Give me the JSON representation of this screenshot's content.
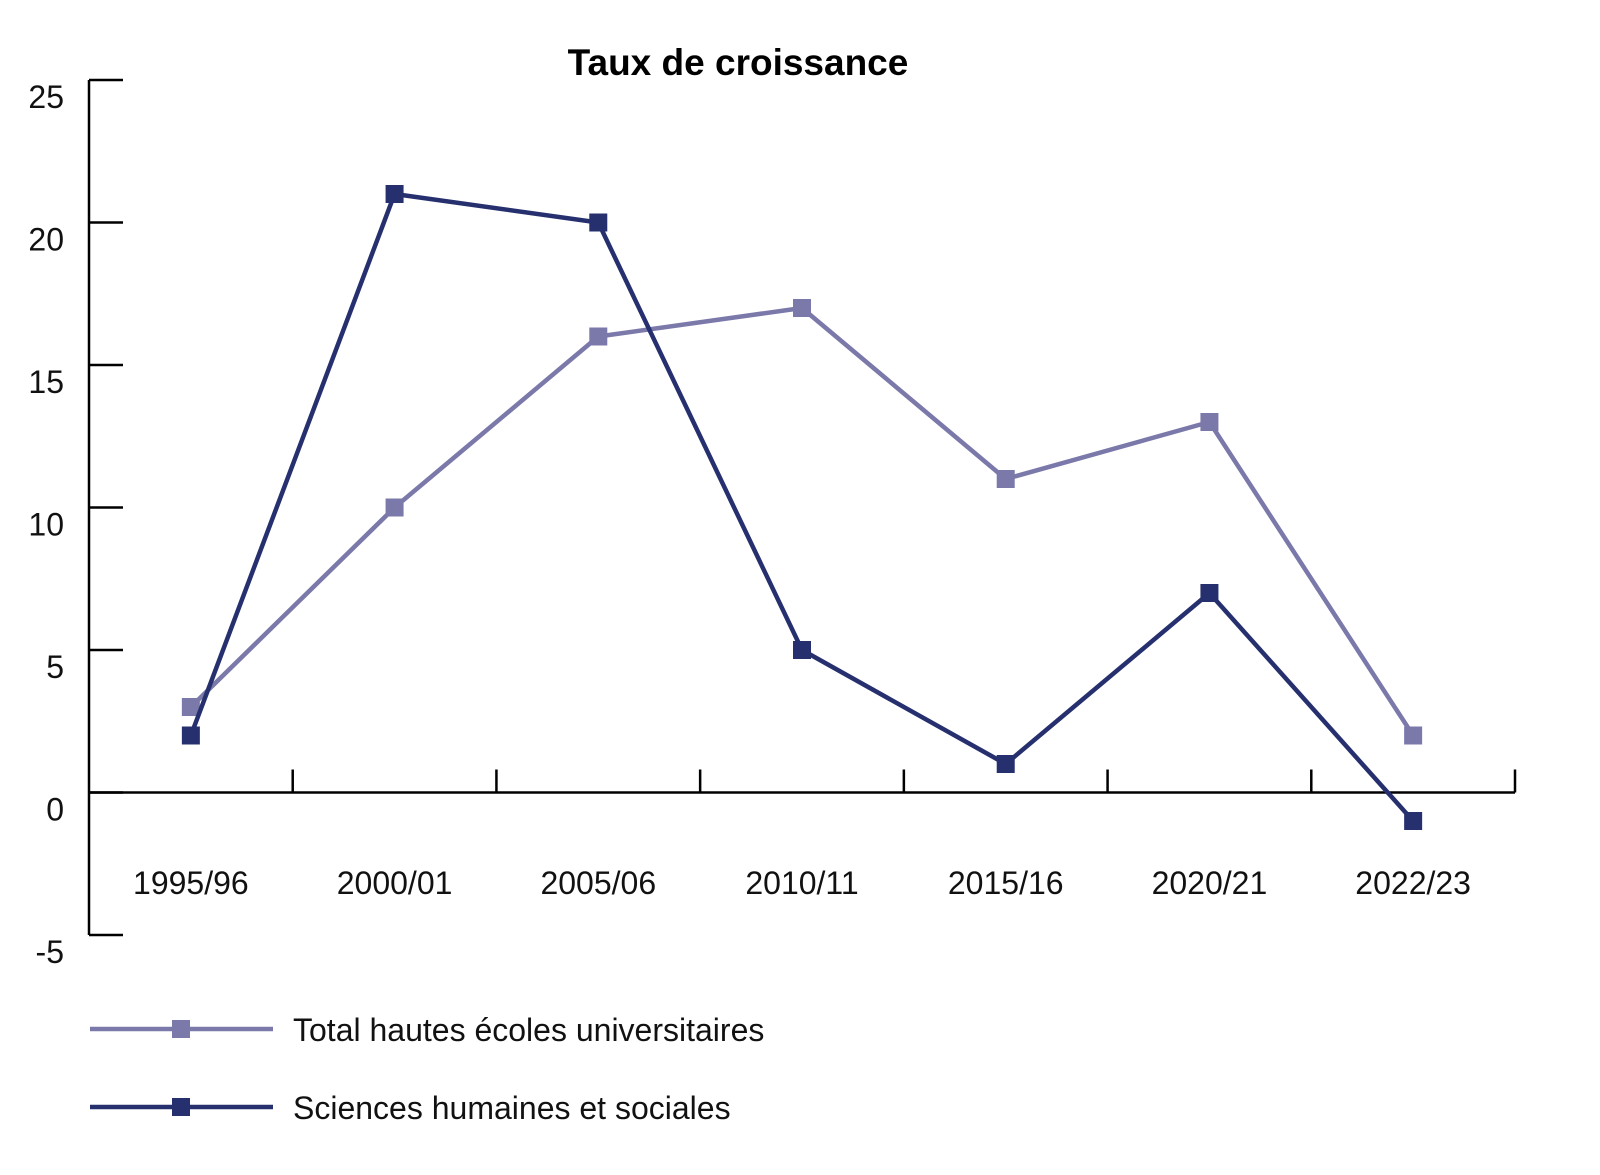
{
  "chart_data": {
    "type": "line",
    "title": "Taux de croissance",
    "xlabel": "",
    "ylabel": "",
    "categories": [
      "1995/96",
      "2000/01",
      "2005/06",
      "2010/11",
      "2015/16",
      "2020/21",
      "2022/23"
    ],
    "ylim": [
      -5,
      25
    ],
    "yticks": [
      -5,
      0,
      5,
      10,
      15,
      20,
      25
    ],
    "grid": false,
    "legend_position": "bottom-left",
    "series": [
      {
        "name": "Total hautes écoles universitaires",
        "color": "#7b78aa",
        "marker": "square",
        "values": [
          3,
          10,
          16,
          17,
          11,
          13,
          2
        ]
      },
      {
        "name": "Sciences humaines et sociales",
        "color": "#27306f",
        "marker": "square",
        "values": [
          2,
          21,
          20,
          5,
          1,
          7,
          -1
        ]
      }
    ]
  }
}
